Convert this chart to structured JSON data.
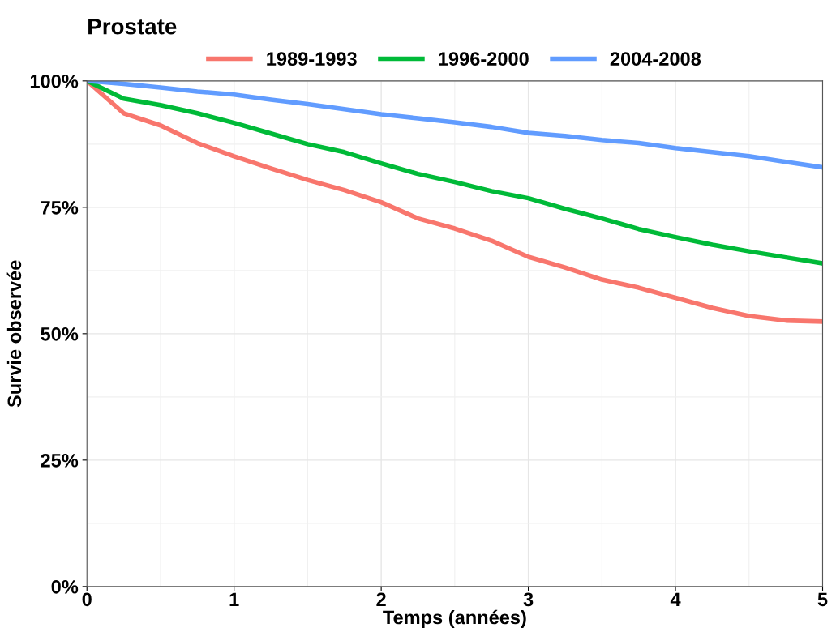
{
  "chart_data": {
    "type": "line",
    "title": "Prostate",
    "xlabel": "Temps (années)",
    "ylabel": "Survie observée",
    "x": [
      0,
      0.25,
      0.5,
      0.75,
      1,
      1.25,
      1.5,
      1.75,
      2,
      2.25,
      2.5,
      2.75,
      3,
      3.25,
      3.5,
      3.75,
      4,
      4.25,
      4.5,
      4.75,
      5
    ],
    "series": [
      {
        "name": "1989-1993",
        "color": "#f8766d",
        "values": [
          100,
          93.6,
          91.2,
          87.7,
          85.1,
          82.7,
          80.4,
          78.4,
          76.0,
          72.8,
          70.8,
          68.4,
          65.2,
          63.1,
          60.7,
          59.1,
          57.1,
          55.1,
          53.5,
          52.6,
          52.4
        ]
      },
      {
        "name": "1996-2000",
        "color": "#00ba38",
        "values": [
          100,
          96.5,
          95.2,
          93.6,
          91.7,
          89.6,
          87.5,
          85.9,
          83.7,
          81.6,
          80.0,
          78.2,
          76.8,
          74.7,
          72.8,
          70.7,
          69.1,
          67.6,
          66.3,
          65.1,
          63.9
        ]
      },
      {
        "name": "2004-2008",
        "color": "#619cff",
        "values": [
          100,
          99.4,
          98.7,
          97.9,
          97.3,
          96.3,
          95.4,
          94.4,
          93.4,
          92.6,
          91.8,
          90.9,
          89.7,
          89.1,
          88.3,
          87.7,
          86.7,
          85.9,
          85.1,
          84.0,
          82.9
        ]
      }
    ],
    "xlim": [
      0,
      5
    ],
    "xticks": [
      0,
      1,
      2,
      3,
      4,
      5
    ],
    "ylim": [
      0,
      100
    ],
    "yticks": [
      {
        "value": 0,
        "label": "0%"
      },
      {
        "value": 25,
        "label": "25%"
      },
      {
        "value": 50,
        "label": "50%"
      },
      {
        "value": 75,
        "label": "75%"
      },
      {
        "value": 100,
        "label": "100%"
      }
    ],
    "grid": true,
    "legend": "top"
  }
}
